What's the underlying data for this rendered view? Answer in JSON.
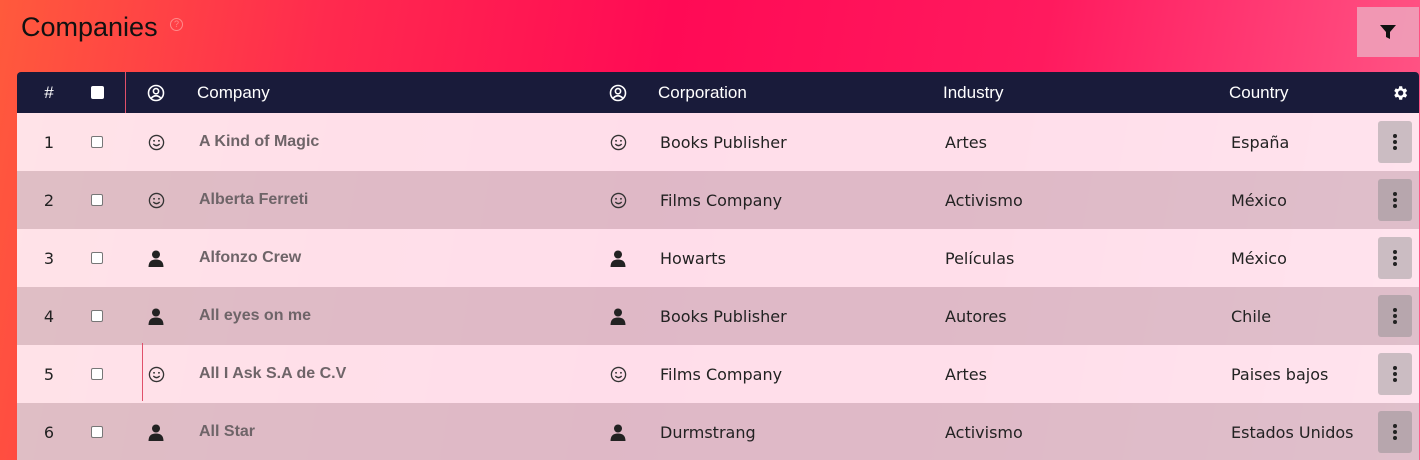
{
  "page": {
    "title": "Companies",
    "help_icon": "question-circle-icon",
    "filter_icon": "filter-icon"
  },
  "table": {
    "columns": {
      "index": "#",
      "select_all": "checkbox-icon",
      "company_icon": "user-circle-icon",
      "company": "Company",
      "corporation_icon": "user-circle-icon",
      "corporation": "Corporation",
      "industry": "Industry",
      "country": "Country",
      "settings": "gear-icon"
    },
    "rows": [
      {
        "index": "1",
        "icon": "smiley-icon",
        "company": "A Kind of Magic",
        "corp_icon": "smiley-icon",
        "corporation": "Books Publisher",
        "industry": "Artes",
        "country": "España"
      },
      {
        "index": "2",
        "icon": "smiley-icon",
        "company": "Alberta Ferreti",
        "corp_icon": "smiley-icon",
        "corporation": "Films Company",
        "industry": "Activismo",
        "country": "México"
      },
      {
        "index": "3",
        "icon": "person-icon",
        "company": "Alfonzo Crew",
        "corp_icon": "person-icon",
        "corporation": "Howarts",
        "industry": "Películas",
        "country": "México"
      },
      {
        "index": "4",
        "icon": "person-icon",
        "company": "All eyes on me",
        "corp_icon": "person-icon",
        "corporation": "Books Publisher",
        "industry": "Autores",
        "country": "Chile"
      },
      {
        "index": "5",
        "icon": "smiley-icon",
        "company": "All I Ask S.A de C.V",
        "corp_icon": "smiley-icon",
        "corporation": "Films Company",
        "industry": "Artes",
        "country": "Paises bajos"
      },
      {
        "index": "6",
        "icon": "person-icon",
        "company": "All Star",
        "corp_icon": "person-icon",
        "corporation": "Durmstrang",
        "industry": "Activismo",
        "country": "Estados Unidos"
      }
    ]
  }
}
